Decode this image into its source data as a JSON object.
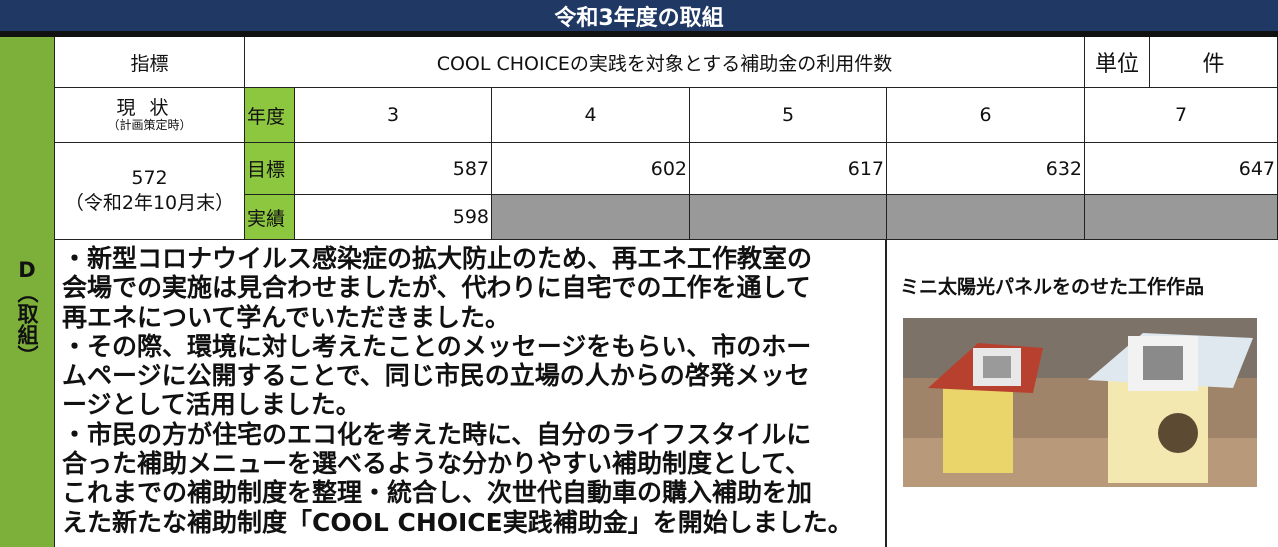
{
  "header": {
    "title": "令和3年度の取組"
  },
  "side_label": "D（取組）",
  "table": {
    "indicator_label": "指標",
    "indicator": "COOL CHOICEの実践を対象とする補助金の利用件数",
    "unit_label": "単位",
    "unit": "件",
    "status_label": "現状",
    "status_note": "（計画策定時）",
    "year_label": "年度",
    "years": [
      3,
      4,
      5,
      6,
      7
    ],
    "baseline_value": 572,
    "baseline_note": "（令和2年10月末）",
    "target_label": "目標",
    "targets": [
      587,
      602,
      617,
      632,
      647
    ],
    "actual_label": "実績",
    "actuals": [
      598
    ]
  },
  "body": {
    "lines": [
      "・新型コロナウイルス感染症の拡大防止のため、再エネ工作教室の",
      "会場での実施は見合わせましたが、代わりに自宅での工作を通して",
      "再エネについて学んでいただきました。",
      "・その際、環境に対し考えたことのメッセージをもらい、市のホー",
      "ムページに公開することで、同じ市民の立場の人からの啓発メッセ",
      "ージとして活用しました。",
      "・市民の方が住宅のエコ化を考えた時に、自分のライフスタイルに",
      "合った補助メニューを選べるような分かりやすい補助制度として、",
      "これまでの補助制度を整理・統合し、次世代自動車の購入補助を加",
      "えた新たな補助制度「COOL CHOICE実践補助金」を開始しました。"
    ]
  },
  "photo": {
    "caption": "ミニ太陽光パネルをのせた工作作品"
  }
}
